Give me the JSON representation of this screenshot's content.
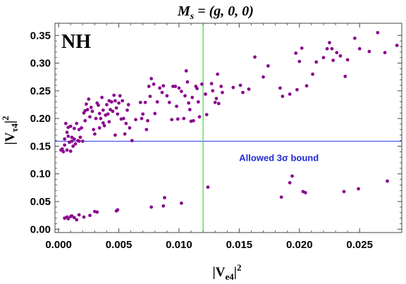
{
  "chart_data": {
    "type": "scatter",
    "title": "M_s = (g, 0, 0)",
    "title_parts": {
      "main": "M",
      "sub": "s",
      "rest": " = (g, 0, 0)"
    },
    "xlabel": "|V_e4|^2",
    "xlabel_parts": {
      "left": "|",
      "main": "V",
      "sub": "e4",
      "right": "|",
      "sup": "2"
    },
    "ylabel": "|V_τ4|^2",
    "ylabel_parts": {
      "left": "|",
      "main": "V",
      "sub": "τ4",
      "right": "|",
      "sup": "2"
    },
    "panel_label": "NH",
    "xlim": [
      -0.0003,
      0.0285
    ],
    "ylim": [
      -0.006,
      0.372
    ],
    "xticks": [
      0.0,
      0.005,
      0.01,
      0.015,
      0.02,
      0.025
    ],
    "xtick_labels": [
      "0.000",
      "0.005",
      "0.010",
      "0.015",
      "0.020",
      "0.025"
    ],
    "yticks": [
      0.0,
      0.05,
      0.1,
      0.15,
      0.2,
      0.25,
      0.3,
      0.35
    ],
    "ytick_labels": [
      "0.00",
      "0.05",
      "0.10",
      "0.15",
      "0.20",
      "0.25",
      "0.30",
      "0.35"
    ],
    "grid": false,
    "hline": {
      "y": 0.159,
      "color": "#2a35e6"
    },
    "vline": {
      "x": 0.012,
      "color": "#41d641"
    },
    "annotation": {
      "text": "Allowed 3σ bound",
      "x": 0.0183,
      "y": 0.123,
      "color": "#2129d6"
    },
    "point_color": "#8b0a8f",
    "series": [
      {
        "points": [
          [
            0.0002,
            0.143
          ],
          [
            0.0003,
            0.145
          ],
          [
            0.0004,
            0.14
          ],
          [
            0.0005,
            0.152
          ],
          [
            0.0005,
            0.163
          ],
          [
            0.0006,
            0.191
          ],
          [
            0.0007,
            0.175
          ],
          [
            0.0007,
            0.143
          ],
          [
            0.0008,
            0.168
          ],
          [
            0.0008,
            0.184
          ],
          [
            0.0009,
            0.157
          ],
          [
            0.001,
            0.141
          ],
          [
            0.001,
            0.186
          ],
          [
            0.0011,
            0.166
          ],
          [
            0.0011,
            0.159
          ],
          [
            0.0012,
            0.15
          ],
          [
            0.0013,
            0.163
          ],
          [
            0.0013,
            0.182
          ],
          [
            0.0014,
            0.154
          ],
          [
            0.0015,
            0.191
          ],
          [
            0.0016,
            0.16
          ],
          [
            0.0017,
            0.18
          ],
          [
            0.0017,
            0.159
          ],
          [
            0.0018,
            0.166
          ],
          [
            0.0019,
            0.183
          ],
          [
            0.002,
            0.159
          ],
          [
            0.0021,
            0.21
          ],
          [
            0.0022,
            0.196
          ],
          [
            0.0022,
            0.214
          ],
          [
            0.0023,
            0.226
          ],
          [
            0.0024,
            0.216
          ],
          [
            0.0025,
            0.235
          ],
          [
            0.0026,
            0.203
          ],
          [
            0.0027,
            0.22
          ],
          [
            0.0028,
            0.213
          ],
          [
            0.0029,
            0.18
          ],
          [
            0.003,
            0.172
          ],
          [
            0.0031,
            0.2
          ],
          [
            0.0032,
            0.228
          ],
          [
            0.0033,
            0.224
          ],
          [
            0.0034,
            0.209
          ],
          [
            0.0034,
            0.183
          ],
          [
            0.0035,
            0.2
          ],
          [
            0.0036,
            0.238
          ],
          [
            0.0037,
            0.215
          ],
          [
            0.0037,
            0.192
          ],
          [
            0.0038,
            0.187
          ],
          [
            0.0039,
            0.206
          ],
          [
            0.004,
            0.225
          ],
          [
            0.0041,
            0.208
          ],
          [
            0.0042,
            0.232
          ],
          [
            0.0042,
            0.194
          ],
          [
            0.0043,
            0.216
          ],
          [
            0.0044,
            0.23
          ],
          [
            0.0045,
            0.213
          ],
          [
            0.0046,
            0.242
          ],
          [
            0.0047,
            0.232
          ],
          [
            0.0047,
            0.17
          ],
          [
            0.0048,
            0.219
          ],
          [
            0.0049,
            0.208
          ],
          [
            0.005,
            0.228
          ],
          [
            0.0051,
            0.241
          ],
          [
            0.0052,
            0.199
          ],
          [
            0.0053,
            0.232
          ],
          [
            0.0054,
            0.2
          ],
          [
            0.0055,
            0.172
          ],
          [
            0.0056,
            0.191
          ],
          [
            0.0057,
            0.215
          ],
          [
            0.0058,
            0.225
          ],
          [
            0.0059,
            0.183
          ],
          [
            0.0061,
            0.16
          ],
          [
            0.0064,
            0.198
          ],
          [
            0.0068,
            0.229
          ],
          [
            0.0069,
            0.2
          ],
          [
            0.007,
            0.208
          ],
          [
            0.0072,
            0.229
          ],
          [
            0.0073,
            0.18
          ],
          [
            0.0074,
            0.196
          ],
          [
            0.0075,
            0.258
          ],
          [
            0.0076,
            0.24
          ],
          [
            0.0077,
            0.272
          ],
          [
            0.0079,
            0.262
          ],
          [
            0.008,
            0.209
          ],
          [
            0.0082,
            0.23
          ],
          [
            0.0084,
            0.255
          ],
          [
            0.0086,
            0.247
          ],
          [
            0.0087,
            0.259
          ],
          [
            0.009,
            0.241
          ],
          [
            0.0092,
            0.229
          ],
          [
            0.0094,
            0.198
          ],
          [
            0.0095,
            0.258
          ],
          [
            0.0097,
            0.258
          ],
          [
            0.0098,
            0.222
          ],
          [
            0.0099,
            0.199
          ],
          [
            0.01,
            0.255
          ],
          [
            0.0102,
            0.249
          ],
          [
            0.0104,
            0.2
          ],
          [
            0.0105,
            0.241
          ],
          [
            0.0106,
            0.286
          ],
          [
            0.0107,
            0.266
          ],
          [
            0.0108,
            0.228
          ],
          [
            0.0109,
            0.216
          ],
          [
            0.011,
            0.195
          ],
          [
            0.0111,
            0.238
          ],
          [
            0.0112,
            0.196
          ],
          [
            0.0114,
            0.258
          ],
          [
            0.0115,
            0.254
          ],
          [
            0.0116,
            0.23
          ],
          [
            0.0117,
            0.203
          ],
          [
            0.0119,
            0.262
          ],
          [
            0.0122,
            0.244
          ],
          [
            0.0123,
            0.207
          ],
          [
            0.0127,
            0.263
          ],
          [
            0.0128,
            0.25
          ],
          [
            0.013,
            0.229
          ],
          [
            0.0131,
            0.236
          ],
          [
            0.0132,
            0.28
          ],
          [
            0.0133,
            0.227
          ],
          [
            0.0135,
            0.258
          ],
          [
            0.0136,
            0.247
          ],
          [
            0.0145,
            0.256
          ],
          [
            0.0151,
            0.26
          ],
          [
            0.0153,
            0.247
          ],
          [
            0.0158,
            0.253
          ],
          [
            0.0163,
            0.311
          ],
          [
            0.017,
            0.275
          ],
          [
            0.0174,
            0.295
          ],
          [
            0.0184,
            0.255
          ],
          [
            0.0186,
            0.24
          ],
          [
            0.0192,
            0.244
          ],
          [
            0.0197,
            0.318
          ],
          [
            0.0198,
            0.252
          ],
          [
            0.02,
            0.303
          ],
          [
            0.0202,
            0.327
          ],
          [
            0.0206,
            0.259
          ],
          [
            0.0211,
            0.28
          ],
          [
            0.0214,
            0.302
          ],
          [
            0.022,
            0.31
          ],
          [
            0.0223,
            0.326
          ],
          [
            0.0225,
            0.337
          ],
          [
            0.0227,
            0.326
          ],
          [
            0.0228,
            0.305
          ],
          [
            0.0231,
            0.319
          ],
          [
            0.0234,
            0.313
          ],
          [
            0.0238,
            0.276
          ],
          [
            0.024,
            0.306
          ],
          [
            0.0246,
            0.345
          ],
          [
            0.025,
            0.326
          ],
          [
            0.0258,
            0.321
          ],
          [
            0.0265,
            0.355
          ],
          [
            0.0271,
            0.319
          ],
          [
            0.0281,
            0.332
          ],
          [
            0.0005,
            0.02
          ],
          [
            0.0007,
            0.022
          ],
          [
            0.0008,
            0.019
          ],
          [
            0.001,
            0.023
          ],
          [
            0.0011,
            0.024
          ],
          [
            0.0013,
            0.021
          ],
          [
            0.0015,
            0.017
          ],
          [
            0.0017,
            0.026
          ],
          [
            0.0021,
            0.022
          ],
          [
            0.0026,
            0.025
          ],
          [
            0.003,
            0.032
          ],
          [
            0.0032,
            0.031
          ],
          [
            0.0048,
            0.033
          ],
          [
            0.0049,
            0.035
          ],
          [
            0.0077,
            0.04
          ],
          [
            0.0087,
            0.042
          ],
          [
            0.0088,
            0.057
          ],
          [
            0.0102,
            0.047
          ],
          [
            0.0124,
            0.076
          ],
          [
            0.0185,
            0.058
          ],
          [
            0.0192,
            0.084
          ],
          [
            0.0194,
            0.096
          ],
          [
            0.0203,
            0.068
          ],
          [
            0.0205,
            0.066
          ],
          [
            0.0237,
            0.068
          ],
          [
            0.0249,
            0.073
          ],
          [
            0.0273,
            0.087
          ]
        ]
      }
    ]
  }
}
